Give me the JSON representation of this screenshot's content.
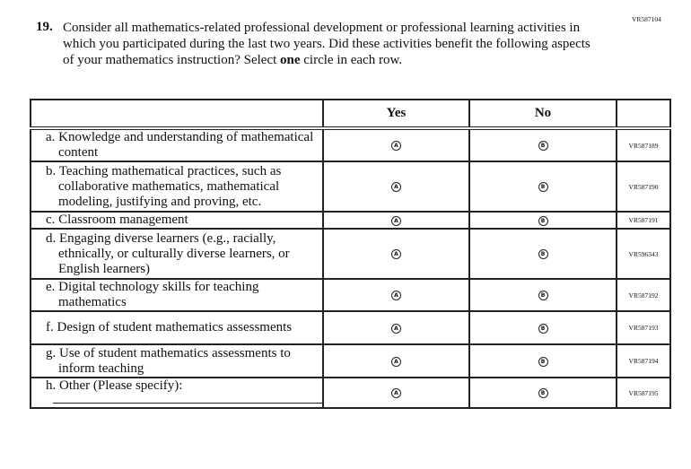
{
  "form_code": "VR587104",
  "question": {
    "number": "19.",
    "text_before": "Consider all mathematics-related professional development or professional learning activities in which you participated during the last two years. Did these activities benefit the following aspects of your mathematics instruction? Select ",
    "emphasis": "one",
    "text_after": " circle in each row."
  },
  "columns": {
    "yes": "Yes",
    "no": "No"
  },
  "options": {
    "a": "A",
    "b": "B"
  },
  "rows": [
    {
      "label": "a. Knowledge and understanding of mathematical content",
      "code": "VR587189"
    },
    {
      "label": "b. Teaching mathematical practices, such as collaborative mathematics, mathematical modeling, justifying and proving, etc.",
      "code": "VR587190"
    },
    {
      "label": "c. Classroom management",
      "code": "VR587191"
    },
    {
      "label": "d. Engaging diverse learners (e.g., racially, ethnically, or culturally diverse learners, or English learners)",
      "code": "VR596343"
    },
    {
      "label": "e. Digital technology skills for teaching mathematics",
      "code": "VR587192"
    },
    {
      "label": "f. Design of student mathematics assessments",
      "code": "VR587193"
    },
    {
      "label": "g. Use of student mathematics assessments to inform teaching",
      "code": "VR587194"
    },
    {
      "label": "h. Other (Please specify):",
      "code": "VR587195"
    }
  ]
}
